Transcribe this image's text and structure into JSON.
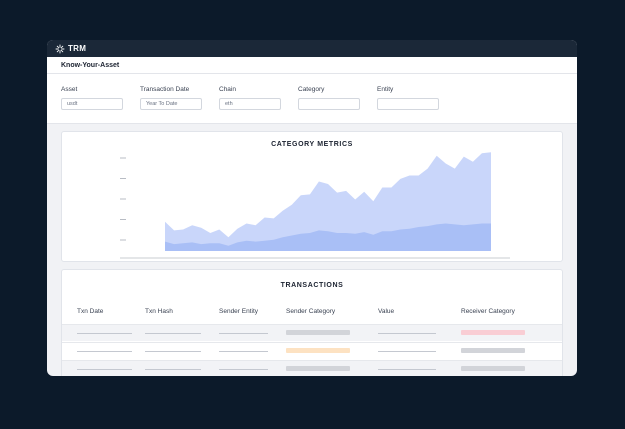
{
  "app": {
    "brand": "TRM",
    "logo_icon": "trm-snowflake-icon"
  },
  "page": {
    "title": "Know-Your-Asset"
  },
  "filters": [
    {
      "label": "Asset",
      "value": "usdt"
    },
    {
      "label": "Transaction Date",
      "value": "Year To Date"
    },
    {
      "label": "Chain",
      "value": "eth"
    },
    {
      "label": "Category",
      "value": ""
    },
    {
      "label": "Entity",
      "value": ""
    }
  ],
  "chart_data": {
    "type": "area",
    "title": "CATEGORY METRICS",
    "xlabel": "",
    "ylabel": "",
    "grid": false,
    "x": [
      1,
      2,
      3,
      4,
      5,
      6,
      7,
      8,
      9,
      10,
      11,
      12,
      13,
      14,
      15,
      16,
      17,
      18,
      19,
      20,
      21,
      22,
      23,
      24,
      25,
      26,
      27,
      28,
      29,
      30,
      31,
      32,
      33,
      34,
      35,
      36,
      37
    ],
    "series": [
      {
        "color": "#c9d6fa",
        "values": [
          34,
          24,
          25,
          30,
          27,
          21,
          25,
          16,
          26,
          32,
          30,
          39,
          38,
          47,
          54,
          65,
          66,
          81,
          78,
          68,
          70,
          60,
          69,
          58,
          74,
          74,
          84,
          88,
          88,
          96,
          111,
          102,
          96,
          110,
          104,
          114,
          115
        ]
      },
      {
        "color": "#a9bff6",
        "values": [
          11,
          8,
          9,
          10,
          8,
          9,
          9,
          6,
          10,
          12,
          11,
          12,
          13,
          16,
          18,
          20,
          21,
          24,
          23,
          21,
          21,
          20,
          22,
          19,
          23,
          23,
          25,
          26,
          28,
          29,
          31,
          32,
          31,
          30,
          31,
          32,
          32
        ]
      }
    ],
    "ylim": [
      0,
      120
    ],
    "ytick_count": 5,
    "colors": {
      "light": "#c9d6fa",
      "dark": "#a9bff6"
    }
  },
  "transactions": {
    "title": "TRANSACTIONS",
    "columns": [
      "Txn Date",
      "Txn Hash",
      "Sender Entity",
      "Sender Category",
      "Value",
      "Receiver Category"
    ],
    "rows": [
      {
        "shaded": true,
        "sender_category_color": "#d2d4d9",
        "receiver_category_color": "#f9cdd4"
      },
      {
        "shaded": false,
        "sender_category_color": "#fde2c2",
        "receiver_category_color": "#d2d4d9"
      },
      {
        "shaded": true,
        "sender_category_color": "#d2d4d9",
        "receiver_category_color": "#d2d4d9"
      }
    ]
  }
}
